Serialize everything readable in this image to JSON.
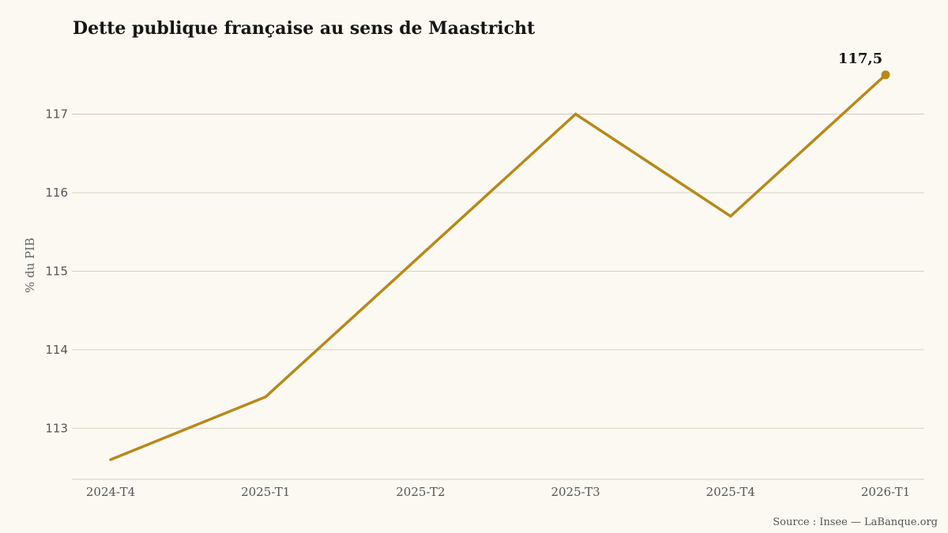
{
  "chart_data": {
    "type": "line",
    "title": "Dette publique française au sens de Maastricht",
    "ylabel": "% du PIB",
    "xlabel": "",
    "categories": [
      "2024-T4",
      "2025-T1",
      "2025-T2",
      "2025-T3",
      "2025-T4",
      "2026-T1"
    ],
    "series": [
      {
        "values": [
          112.6,
          113.4,
          115.2,
          117.0,
          115.7,
          117.5
        ]
      }
    ],
    "ylim": [
      112.35,
      117.85
    ],
    "yticks": [
      113,
      114,
      115,
      116,
      117
    ],
    "grid": true,
    "last_point_label": "117,5",
    "line_color": "#b8891a",
    "grid_color_top": "#dcc4bf",
    "grid_color": "#d8d2c2",
    "source": "Source : Insee — LaBanque.org"
  }
}
